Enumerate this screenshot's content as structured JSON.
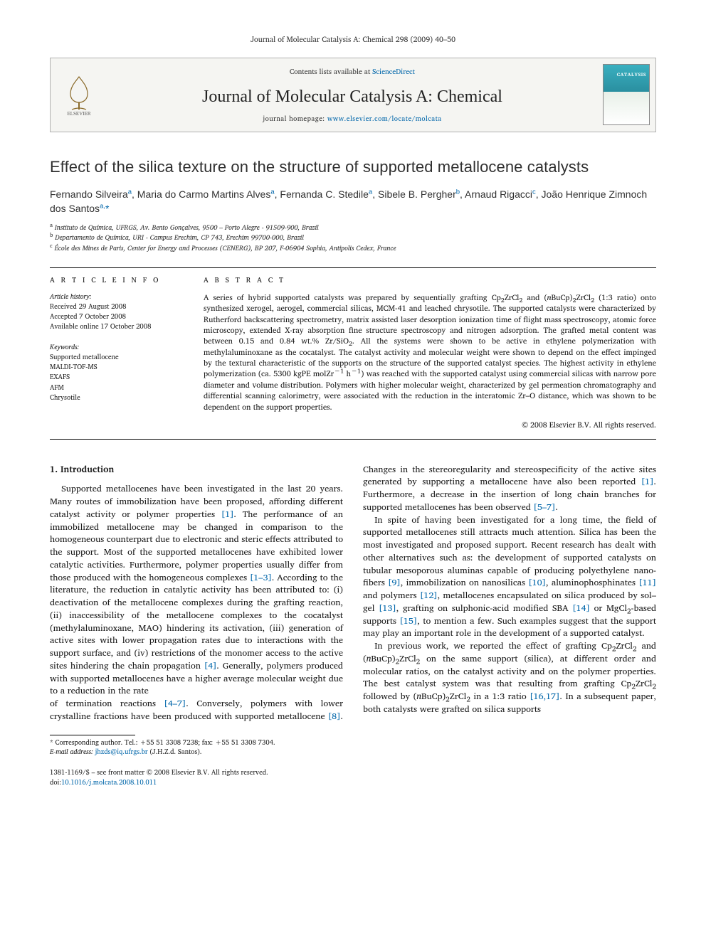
{
  "running_head": "Journal of Molecular Catalysis A: Chemical 298 (2009) 40–50",
  "masthead": {
    "contents_prefix": "Contents lists available at ",
    "contents_link": "ScienceDirect",
    "journal_name": "Journal of Molecular Catalysis A: Chemical",
    "homepage_prefix": "journal homepage: ",
    "homepage_url": "www.elsevier.com/locate/molcata",
    "publisher_logo_label": "ELSEVIER",
    "cover_label": "CATALYSIS"
  },
  "title": "Effect of the silica texture on the structure of supported metallocene catalysts",
  "authors_html": "Fernando Silveira<sup>a</sup>, Maria do Carmo Martins Alves<sup>a</sup>, Fernanda C. Stedile<sup>a</sup>, Sibele B. Pergher<sup>b</sup>, Arnaud Rigacci<sup>c</sup>, João Henrique Zimnoch dos Santos<sup>a,</sup><span class='ast'>*</span>",
  "affiliations": {
    "a": "Instituto de Química, UFRGS, Av. Bento Gonçalves, 9500 – Porto Alegre - 91509-900, Brazil",
    "b": "Departamento de Química, URI - Campus Erechim, CP 743, Erechim 99700-000, Brazil",
    "c": "École des Mines de Paris, Center for Energy and Processes (CENERG), BP 207, F-06904 Sophia, Antipolis Cedex, France"
  },
  "article_info": {
    "heading": "A R T I C L E    I N F O",
    "history_label": "Article history:",
    "received": "Received 29 August 2008",
    "accepted": "Accepted 7 October 2008",
    "online": "Available online 17 October 2008",
    "keywords_label": "Keywords:",
    "keywords": [
      "Supported metallocene",
      "MALDI-TOF-MS",
      "EXAFS",
      "AFM",
      "Chrysotile"
    ]
  },
  "abstract": {
    "heading": "A B S T R A C T",
    "text": "A series of hybrid supported catalysts was prepared by sequentially grafting Cp₂ZrCl₂ and (nBuCp)₂ZrCl₂ (1:3 ratio) onto synthesized xerogel, aerogel, commercial silicas, MCM-41 and leached chrysotile. The supported catalysts were characterized by Rutherford backscattering spectrometry, matrix assisted laser desorption ionization time of flight mass spectroscopy, atomic force microscopy, extended X-ray absorption fine structure spectroscopy and nitrogen adsorption. The grafted metal content was between 0.15 and 0.84 wt.% Zr/SiO₂. All the systems were shown to be active in ethylene polymerization with methylaluminoxane as the cocatalyst. The catalyst activity and molecular weight were shown to depend on the effect impinged by the textural characteristic of the supports on the structure of the supported catalyst species. The highest activity in ethylene polymerization (ca. 5300 kgPE molZr⁻¹ h⁻¹) was reached with the supported catalyst using commercial silicas with narrow pore diameter and volume distribution. Polymers with higher molecular weight, characterized by gel permeation chromatography and differential scanning calorimetry, were associated with the reduction in the interatomic Zr–O distance, which was shown to be dependent on the support properties.",
    "copyright": "© 2008 Elsevier B.V. All rights reserved."
  },
  "body": {
    "section_heading": "1.  Introduction",
    "p1": "Supported metallocenes have been investigated in the last 20 years. Many routes of immobilization have been proposed, affording different catalyst activity or polymer properties [1]. The performance of an immobilized metallocene may be changed in comparison to the homogeneous counterpart due to electronic and steric effects attributed to the support. Most of the supported metallocenes have exhibited lower catalytic activities. Furthermore, polymer properties usually differ from those produced with the homogeneous complexes [1–3]. According to the literature, the reduction in catalytic activity has been attributed to: (i) deactivation of the metallocene complexes during the grafting reaction, (ii) inaccessibility of the metallocene complexes to the cocatalyst (methylaluminoxane, MAO) hindering its activation, (iii) generation of active sites with lower propagation rates due to interactions with the support surface, and (iv) restrictions of the monomer access to the active sites hindering the chain propagation [4]. Generally, polymers produced with supported metallocenes have a higher average molecular weight due to a reduction in the rate",
    "p2": "of termination reactions [4–7]. Conversely, polymers with lower crystalline fractions have been produced with supported metallocene [8]. Changes in the stereoregularity and stereospecificity of the active sites generated by supporting a metallocene have also been reported [1]. Furthermore, a decrease in the insertion of long chain branches for supported metallocenes has been observed [5–7].",
    "p3": "In spite of having been investigated for a long time, the field of supported metallocenes still attracts much attention. Silica has been the most investigated and proposed support. Recent research has dealt with other alternatives such as: the development of supported catalysts on tubular mesoporous aluminas capable of producing polyethylene nano-fibers [9], immobilization on nanosilicas [10], aluminophosphinates [11] and polymers [12], metallocenes encapsulated on silica produced by sol–gel [13], grafting on sulphonic-acid modified SBA [14] or MgCl₂-based supports [15], to mention a few. Such examples suggest that the support may play an important role in the development of a supported catalyst.",
    "p4": "In previous work, we reported the effect of grafting Cp₂ZrCl₂ and (nBuCp)₂ZrCl₂ on the same support (silica), at different order and molecular ratios, on the catalyst activity and on the polymer properties. The best catalyst system was that resulting from grafting Cp₂ZrCl₂ followed by (nBuCp)₂ZrCl₂ in a 1:3 ratio [16,17]. In a subsequent paper, both catalysts were grafted on silica supports"
  },
  "footnote": {
    "corr": "* Corresponding author. Tel.: +55 51 3308 7238; fax: +55 51 3308 7304.",
    "email_label": "E-mail address:",
    "email": "jhzds@iq.ufrgs.br",
    "email_who": "(J.H.Z.d. Santos)."
  },
  "footer": {
    "issn_line": "1381-1169/$ – see front matter © 2008 Elsevier B.V. All rights reserved.",
    "doi_label": "doi:",
    "doi": "10.1016/j.molcata.2008.10.011"
  },
  "colors": {
    "link": "#0066aa",
    "rule": "#000000",
    "text": "#1a1a1a",
    "mast_bg": "#f5f5f2",
    "mast_border": "#b0b0b0"
  },
  "typography": {
    "body_pt": 12.5,
    "title_pt": 22,
    "journal_pt": 24,
    "small_pt": 9.5
  }
}
